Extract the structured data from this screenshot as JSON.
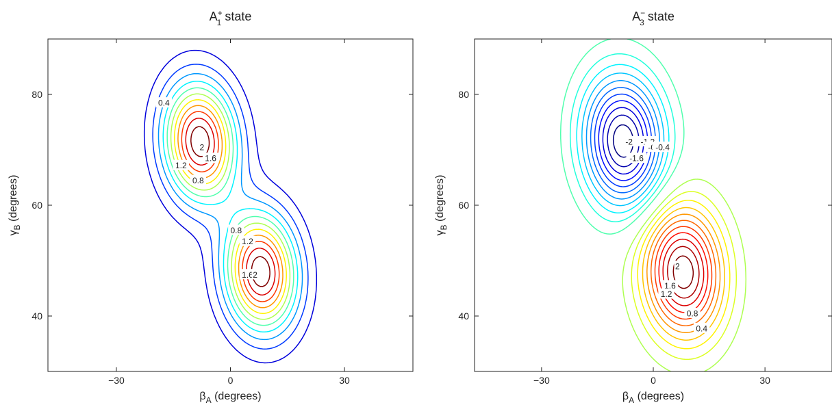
{
  "chart_data": [
    {
      "type": "contour",
      "title": {
        "main": "A",
        "sub": "1",
        "sup": "+",
        "rest": " state"
      },
      "xlabel": {
        "sym": "β",
        "sub": "A",
        "rest": " (degrees)"
      },
      "ylabel": {
        "sym": "γ",
        "sub": "B",
        "rest": " (degrees)"
      },
      "xlim": [
        -48,
        48
      ],
      "ylim": [
        30,
        90
      ],
      "xticks": [
        -30,
        0,
        30
      ],
      "yticks": [
        40,
        60,
        80
      ],
      "grid": false,
      "colormap": "jet",
      "color_range": [
        0,
        2.2
      ],
      "gaussians": [
        {
          "amplitude": 2.35,
          "cx": -8,
          "cy": 71.5,
          "sx": 6.5,
          "sy": 7.5,
          "angle_deg": 18
        },
        {
          "amplitude": 2.35,
          "cx": 8,
          "cy": 48,
          "sx": 6.5,
          "sy": 7.5,
          "angle_deg": 18
        }
      ],
      "levels": [
        0.2,
        0.4,
        0.6,
        0.8,
        1.0,
        1.2,
        1.4,
        1.6,
        1.8,
        2.0,
        2.2
      ],
      "contour_labels": [
        {
          "text": "0.4",
          "x": -17.5,
          "y": 78.5
        },
        {
          "text": "2",
          "x": -7.5,
          "y": 70.5
        },
        {
          "text": "1.6",
          "x": -5.2,
          "y": 68.5
        },
        {
          "text": "1.2",
          "x": -13,
          "y": 67.2
        },
        {
          "text": "0.8",
          "x": -8.5,
          "y": 64.5
        },
        {
          "text": "0.8",
          "x": 1.5,
          "y": 55.5
        },
        {
          "text": "1.2",
          "x": 4.5,
          "y": 53.5
        },
        {
          "text": "1.6",
          "x": 4.5,
          "y": 47.5
        },
        {
          "text": "2",
          "x": 6.5,
          "y": 47.5
        }
      ]
    },
    {
      "type": "contour",
      "title": {
        "main": "A",
        "sub": "3",
        "sup": "−",
        "rest": " state"
      },
      "xlabel": {
        "sym": "β",
        "sub": "A",
        "rest": " (degrees)"
      },
      "ylabel": {
        "sym": "γ",
        "sub": "B",
        "rest": " (degrees)"
      },
      "xlim": [
        -48,
        48
      ],
      "ylim": [
        30,
        90
      ],
      "xticks": [
        -30,
        0,
        30
      ],
      "yticks": [
        40,
        60,
        80
      ],
      "grid": false,
      "colormap": "jet",
      "color_range": [
        -2.2,
        2.2
      ],
      "gaussians": [
        {
          "amplitude": -2.35,
          "cx": -8,
          "cy": 71.5,
          "sx": 7.5,
          "sy": 8.5,
          "angle_deg": 18
        },
        {
          "amplitude": 2.35,
          "cx": 8,
          "cy": 48,
          "sx": 7.5,
          "sy": 8.5,
          "angle_deg": 18
        }
      ],
      "levels": [
        -2.2,
        -2.0,
        -1.8,
        -1.6,
        -1.4,
        -1.2,
        -1.0,
        -0.8,
        -0.6,
        -0.4,
        -0.2,
        0.2,
        0.4,
        0.6,
        0.8,
        1.0,
        1.2,
        1.4,
        1.6,
        1.8,
        2.0,
        2.2
      ],
      "contour_labels": [
        {
          "text": "-2",
          "x": -6.5,
          "y": 71.5
        },
        {
          "text": "-1.6",
          "x": -4.5,
          "y": 68.5
        },
        {
          "text": "-1.2",
          "x": -1.5,
          "y": 71.5
        },
        {
          "text": "-0.8",
          "x": 0.5,
          "y": 70.5
        },
        {
          "text": "-0.4",
          "x": 2.5,
          "y": 70.5
        },
        {
          "text": "2",
          "x": 6.5,
          "y": 49
        },
        {
          "text": "1.6",
          "x": 4.5,
          "y": 45.5
        },
        {
          "text": "1.2",
          "x": 3.5,
          "y": 44
        },
        {
          "text": "0.8",
          "x": 10.5,
          "y": 40.5
        },
        {
          "text": "0.4",
          "x": 13,
          "y": 37.8
        }
      ]
    }
  ]
}
